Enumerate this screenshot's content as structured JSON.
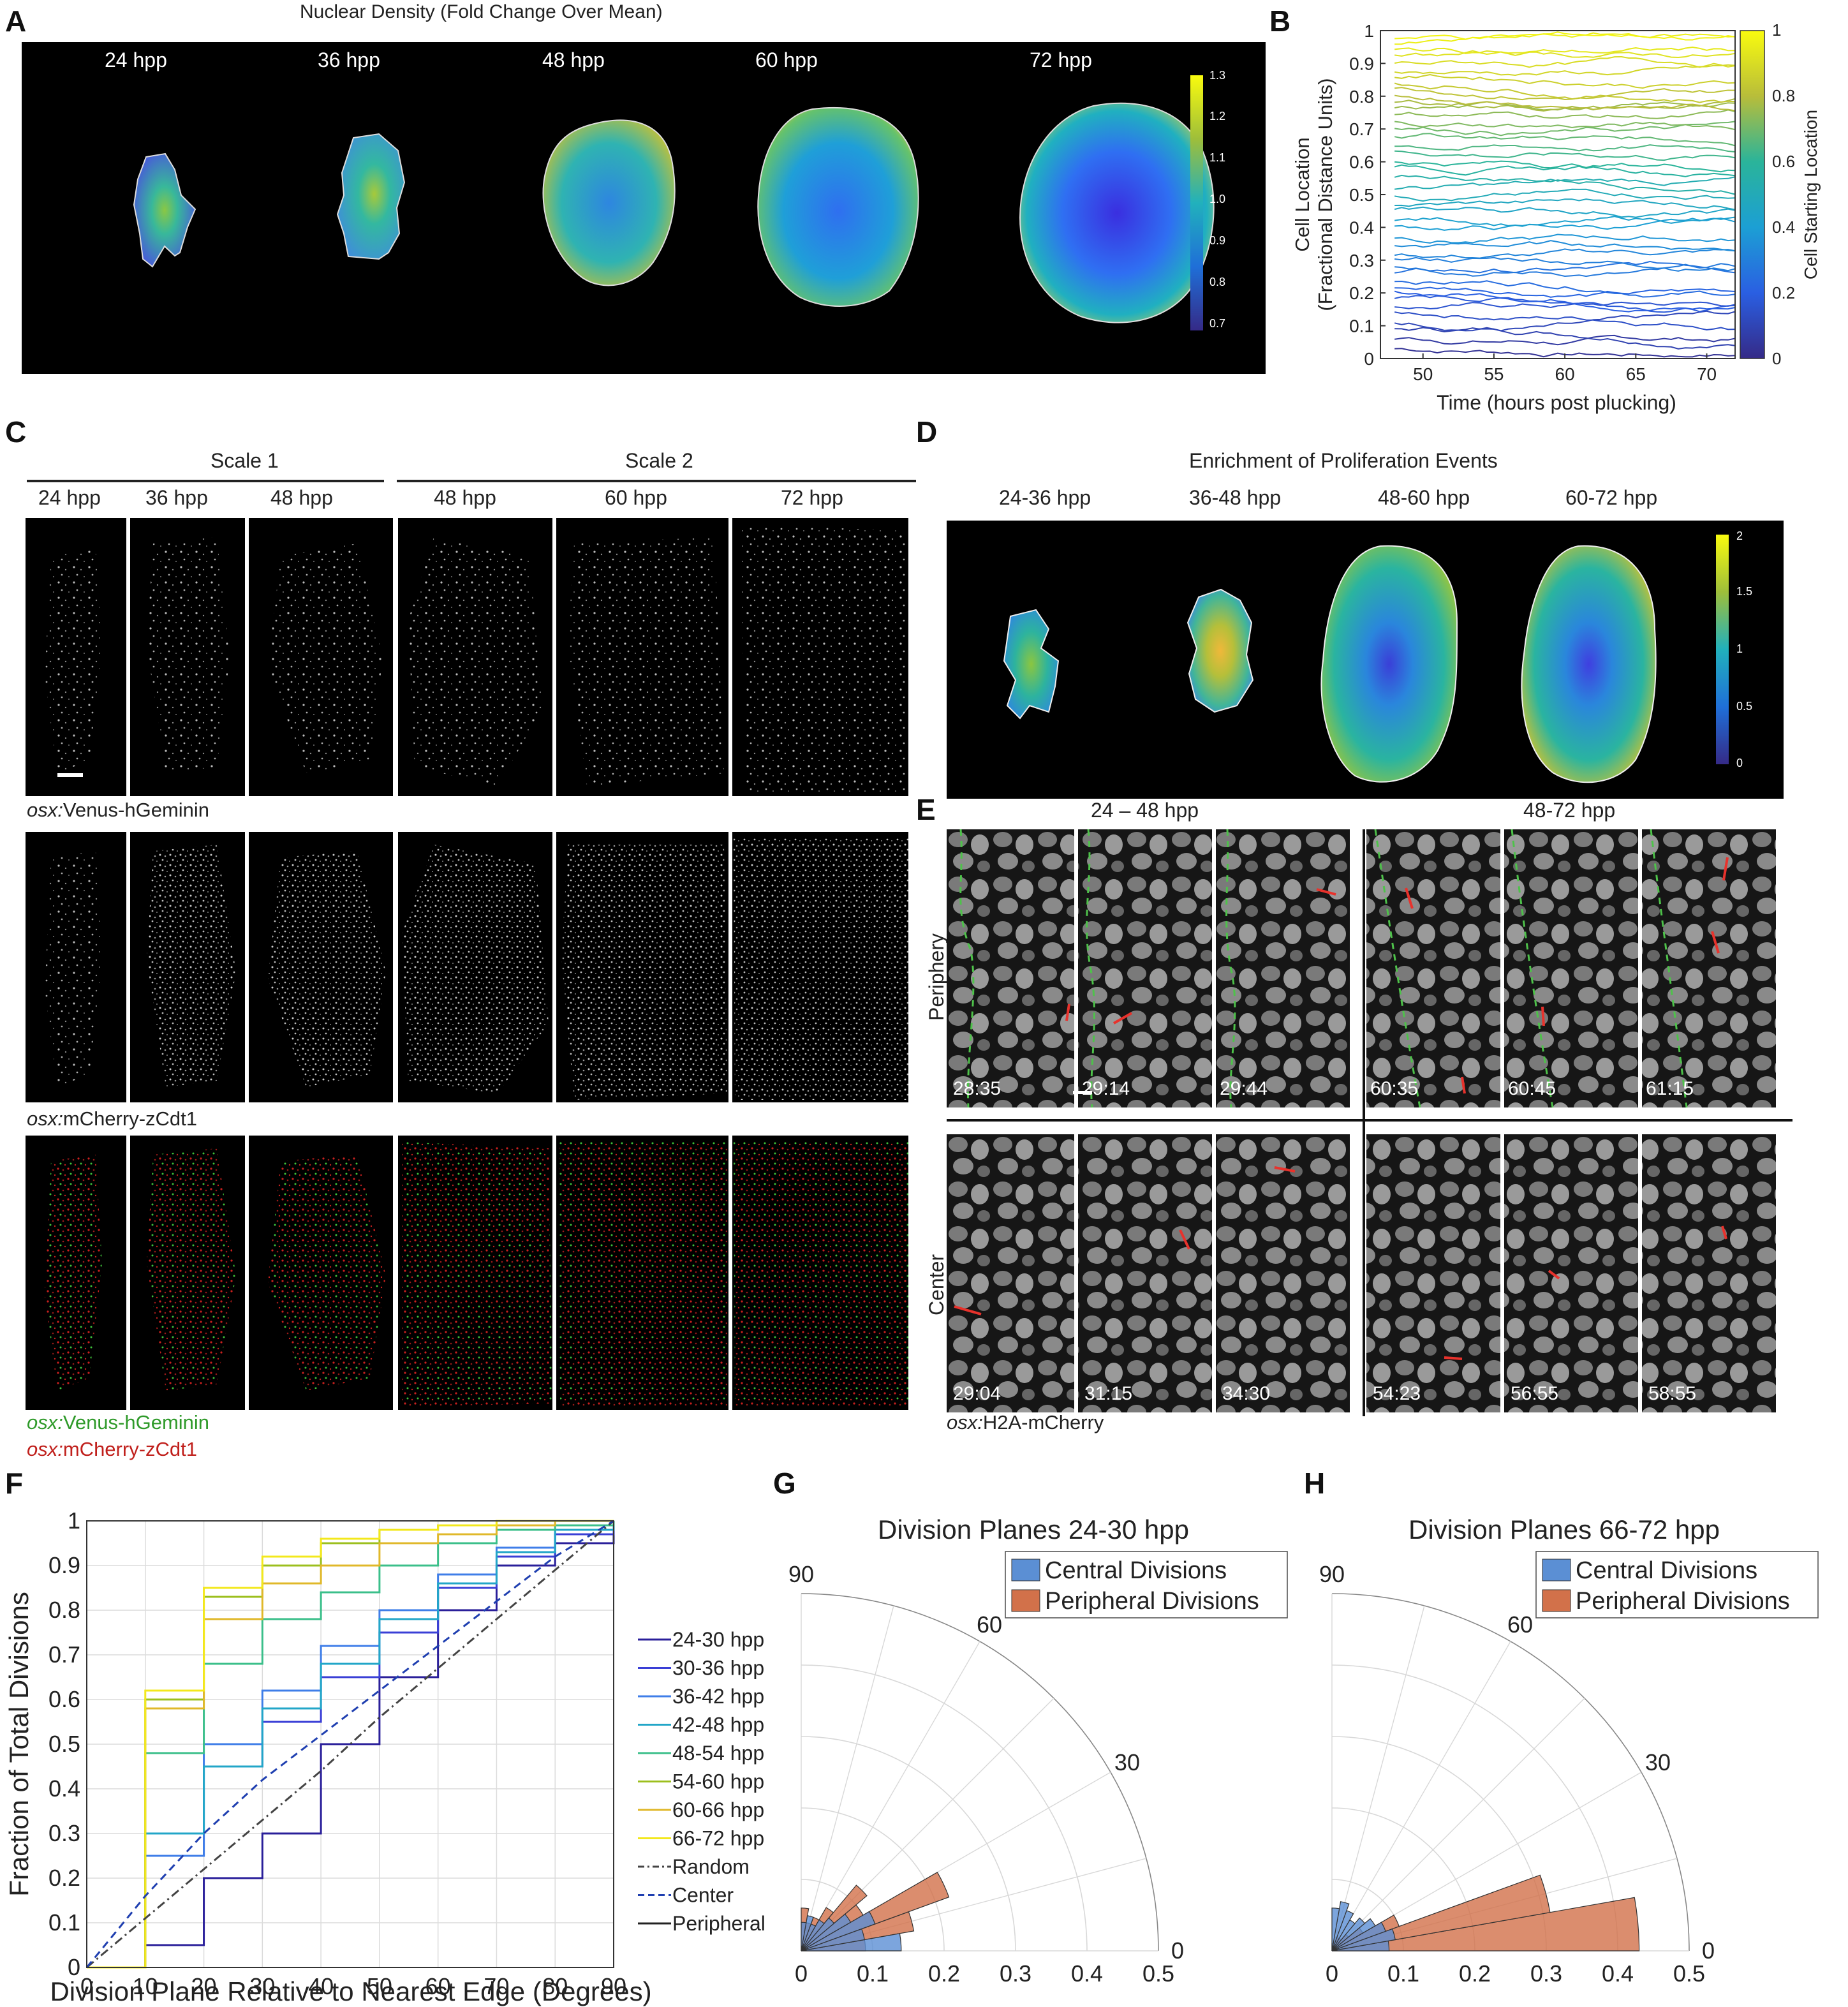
{
  "panels": {
    "A": {
      "letter": "A",
      "title": "Nuclear Density (Fold Change Over Mean)",
      "timepoints": [
        "24 hpp",
        "36 hpp",
        "48 hpp",
        "60 hpp",
        "72 hpp"
      ],
      "colorbar_ticks": [
        "1.3",
        "1.2",
        "1.1",
        "1.0",
        "0.9",
        "0.8",
        "0.7"
      ]
    },
    "B": {
      "letter": "B",
      "colorbar_label": "Cell Starting Location",
      "colorbar_ticks": [
        "1",
        "0.8",
        "0.6",
        "0.4",
        "0.2",
        "0"
      ]
    },
    "C": {
      "letter": "C",
      "group1": "Scale 1",
      "group2": "Scale 2",
      "timepoints": [
        "24 hpp",
        "36 hpp",
        "48 hpp",
        "48 hpp",
        "60 hpp",
        "72 hpp"
      ],
      "row1_prefix": "osx:",
      "row1_label": "Venus-hGeminin",
      "row2_prefix": "osx:",
      "row2_label": "mCherry-zCdt1",
      "merge_green_prefix": "osx:",
      "merge_green_label": "Venus-hGeminin",
      "merge_red_prefix": "osx:",
      "merge_red_label": "mCherry-zCdt1"
    },
    "D": {
      "letter": "D",
      "title": "Enrichment of Proliferation Events",
      "intervals": [
        "24-36 hpp",
        "36-48 hpp",
        "48-60 hpp",
        "60-72 hpp"
      ],
      "colorbar_ticks": [
        "2",
        "1.5",
        "1",
        "0.5",
        "0"
      ]
    },
    "E": {
      "letter": "E",
      "group1": "24 – 48 hpp",
      "group2": "48-72 hpp",
      "row1": "Periphery",
      "row2": "Center",
      "periphery_times": [
        "28:35",
        "29:14",
        "29:44",
        "60:35",
        "60:45",
        "61:15"
      ],
      "center_times": [
        "29:04",
        "31:15",
        "34:30",
        "54:23",
        "56:55",
        "58:55"
      ],
      "caption_prefix": "osx:",
      "caption_label": "H2A-mCherry"
    },
    "F": {
      "letter": "F"
    },
    "G": {
      "letter": "G"
    },
    "H": {
      "letter": "H"
    }
  },
  "colors": {
    "parula_low": "#352a87",
    "parula_mid": "#21b1bc",
    "parula_high": "#f9fb0e",
    "central": "#5b8fd4",
    "peripheral": "#d2714a",
    "division_marker": "#e8322c",
    "edge_marker": "#4ec24a"
  },
  "chart_data": [
    {
      "type": "line",
      "panel": "B",
      "xlabel": "Time (hours post plucking)",
      "ylabel": "Cell Location",
      "ylabel2": "(Fractional Distance Units)",
      "xlim": [
        47,
        72
      ],
      "ylim": [
        0,
        1
      ],
      "xticks": [
        50,
        55,
        60,
        65,
        70
      ],
      "yticks": [
        0,
        0.1,
        0.2,
        0.3,
        0.4,
        0.5,
        0.6,
        0.7,
        0.8,
        0.9,
        1
      ],
      "x_range_of_tracks": [
        48,
        72
      ],
      "start_locations": [
        0.03,
        0.06,
        0.09,
        0.11,
        0.14,
        0.16,
        0.18,
        0.2,
        0.22,
        0.24,
        0.26,
        0.28,
        0.3,
        0.32,
        0.34,
        0.37,
        0.4,
        0.42,
        0.45,
        0.47,
        0.5,
        0.52,
        0.55,
        0.58,
        0.6,
        0.63,
        0.65,
        0.68,
        0.7,
        0.72,
        0.74,
        0.76,
        0.78,
        0.8,
        0.82,
        0.84,
        0.86,
        0.88,
        0.9,
        0.92,
        0.94,
        0.96,
        0.98
      ],
      "colorbar": "Cell Starting Location",
      "grid": false
    },
    {
      "type": "line",
      "panel": "F",
      "xlabel": "Division Plane Relative to Nearest Edge (Degrees)",
      "ylabel": "Fraction of Total Divisions",
      "xlim": [
        0,
        90
      ],
      "ylim": [
        0,
        1
      ],
      "xticks": [
        0,
        10,
        20,
        30,
        40,
        50,
        60,
        70,
        80,
        90
      ],
      "yticks": [
        0,
        0.1,
        0.2,
        0.3,
        0.4,
        0.5,
        0.6,
        0.7,
        0.8,
        0.9,
        1
      ],
      "grid": true,
      "legend_position": "right",
      "x": [
        0,
        10,
        20,
        30,
        40,
        50,
        60,
        70,
        80,
        90
      ],
      "series": [
        {
          "name": "24-30 hpp",
          "color": "#2a1f9a",
          "style": "solid",
          "values": [
            0,
            0.05,
            0.2,
            0.3,
            0.5,
            0.65,
            0.8,
            0.9,
            0.95,
            1
          ]
        },
        {
          "name": "30-36 hpp",
          "color": "#3a3fd6",
          "style": "solid",
          "values": [
            0,
            0.25,
            0.45,
            0.55,
            0.65,
            0.75,
            0.85,
            0.92,
            0.97,
            1
          ]
        },
        {
          "name": "36-42 hpp",
          "color": "#3f7ee8",
          "style": "solid",
          "values": [
            0,
            0.25,
            0.5,
            0.62,
            0.72,
            0.8,
            0.88,
            0.94,
            0.98,
            1
          ]
        },
        {
          "name": "42-48 hpp",
          "color": "#22a6c8",
          "style": "solid",
          "values": [
            0,
            0.3,
            0.45,
            0.58,
            0.68,
            0.78,
            0.86,
            0.93,
            0.98,
            1
          ]
        },
        {
          "name": "48-54 hpp",
          "color": "#3bbf8a",
          "style": "solid",
          "values": [
            0,
            0.48,
            0.68,
            0.78,
            0.84,
            0.9,
            0.95,
            0.98,
            0.99,
            1
          ]
        },
        {
          "name": "54-60 hpp",
          "color": "#9cbf1e",
          "style": "solid",
          "values": [
            0,
            0.6,
            0.83,
            0.9,
            0.95,
            0.98,
            0.99,
            1,
            1,
            1
          ]
        },
        {
          "name": "60-66 hpp",
          "color": "#e0b82a",
          "style": "solid",
          "values": [
            0,
            0.58,
            0.78,
            0.86,
            0.9,
            0.95,
            0.97,
            0.99,
            1,
            1
          ]
        },
        {
          "name": "66-72 hpp",
          "color": "#f3e81c",
          "style": "solid",
          "values": [
            0,
            0.62,
            0.85,
            0.92,
            0.96,
            0.98,
            0.99,
            1,
            1,
            1
          ]
        },
        {
          "name": "Random",
          "color": "#444444",
          "style": "dashdot",
          "values": [
            0,
            0.11,
            0.22,
            0.33,
            0.44,
            0.56,
            0.67,
            0.78,
            0.89,
            1
          ]
        },
        {
          "name": "Center",
          "color": "#1f3fb0",
          "style": "dashed",
          "values": [
            0,
            0.16,
            0.3,
            0.42,
            0.52,
            0.62,
            0.72,
            0.82,
            0.92,
            1
          ]
        },
        {
          "name": "Peripheral",
          "color": "#222222",
          "style": "solid",
          "values": null
        }
      ]
    },
    {
      "type": "polar_histogram",
      "panel": "G",
      "title": "Division Planes 24-30 hpp",
      "theta_ticks": [
        0,
        30,
        60,
        90
      ],
      "r_ticks": [
        0,
        0.1,
        0.2,
        0.3,
        0.4,
        0.5
      ],
      "rlim": [
        0,
        0.5
      ],
      "legend": [
        "Central Divisions",
        "Peripheral Divisions"
      ],
      "legend_position": "top-right",
      "bins_deg": [
        0,
        10,
        20,
        30,
        40,
        50,
        60,
        70,
        80
      ],
      "central": [
        0.14,
        0.09,
        0.11,
        0.08,
        0.06,
        0.05,
        0.04,
        0.05,
        0.04
      ],
      "peripheral": [
        0.09,
        0.16,
        0.22,
        0.1,
        0.12,
        0.07,
        0.05,
        0.04,
        0.06
      ]
    },
    {
      "type": "polar_histogram",
      "panel": "H",
      "title": "Division Planes 66-72 hpp",
      "theta_ticks": [
        0,
        30,
        60,
        90
      ],
      "r_ticks": [
        0,
        0.1,
        0.2,
        0.3,
        0.4,
        0.5
      ],
      "rlim": [
        0,
        0.5
      ],
      "legend": [
        "Central Divisions",
        "Peripheral Divisions"
      ],
      "legend_position": "top-right",
      "bins_deg": [
        0,
        10,
        20,
        30,
        40,
        50,
        60,
        70,
        80
      ],
      "central": [
        0.08,
        0.09,
        0.08,
        0.07,
        0.06,
        0.05,
        0.06,
        0.07,
        0.06
      ],
      "peripheral": [
        0.43,
        0.31,
        0.1,
        0.05,
        0.03,
        0.02,
        0.02,
        0.01,
        0.01
      ]
    }
  ]
}
